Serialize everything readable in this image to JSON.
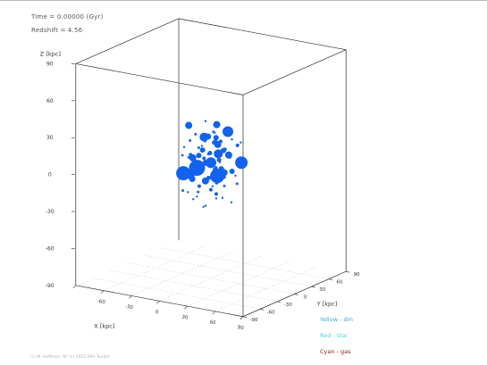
{
  "info": {
    "time_line": "Time = 0.00000 (Gyr)",
    "redshift_line": "Redshift = 4.56"
  },
  "legend": [
    {
      "label": "Yellow - dm",
      "color": "#3fa7d6"
    },
    {
      "label": "Red   - star",
      "color": "#4fd1d9"
    },
    {
      "label": "Cyan  - gas",
      "color": "#8b2323"
    }
  ],
  "credit": "(c) M. Hoffman, N* (c) 2013 SPH Toolkit",
  "colors": {
    "particles": "#1262ee",
    "box": "#2a2a2a",
    "grid": "#cfcfcf"
  },
  "chart_data": {
    "type": "scatter",
    "projection": "3d",
    "grid_floor": true,
    "z_axis": {
      "label": "Z [kpc]",
      "range": [
        -90,
        90
      ],
      "ticks": [
        "90",
        "60",
        "30",
        "0",
        "-30",
        "-60",
        "-90"
      ]
    },
    "x_axis": {
      "label": "X [kpc]",
      "range": [
        -90,
        90
      ],
      "ticks": [
        "-90",
        "-60",
        "-30",
        "0",
        "30",
        "60",
        "90"
      ]
    },
    "y_axis": {
      "label": "Y [kpc]",
      "range": [
        -90,
        90
      ],
      "ticks": [
        "-90",
        "-60",
        "-30",
        "0",
        "30",
        "60",
        "90"
      ]
    },
    "series": [
      {
        "points": [
          {
            "x": 0,
            "y": 0,
            "z": 4,
            "r": 6
          },
          {
            "x": -10,
            "y": -8,
            "z": 0,
            "r": 9
          },
          {
            "x": 13,
            "y": -10,
            "z": -3,
            "r": 8
          },
          {
            "x": -26,
            "y": -6,
            "z": -7,
            "r": 8
          },
          {
            "x": 23,
            "y": 16,
            "z": 4,
            "r": 7
          },
          {
            "x": 6,
            "y": 20,
            "z": 26,
            "r": 6
          },
          {
            "x": -11,
            "y": 6,
            "z": 22,
            "r": 5
          },
          {
            "x": 3,
            "y": 8,
            "z": 10,
            "r": 5
          },
          {
            "x": -16,
            "y": -10,
            "z": -6,
            "r": 5
          },
          {
            "x": 8,
            "y": 10,
            "z": -5,
            "r": 4
          },
          {
            "x": -22,
            "y": 4,
            "z": 4,
            "r": 4
          },
          {
            "x": -5,
            "y": 20,
            "z": 14,
            "r": 4
          },
          {
            "x": -6,
            "y": 20,
            "z": 30,
            "r": 4
          },
          {
            "x": 13,
            "y": 10,
            "z": 10,
            "r": 4
          },
          {
            "x": -30,
            "y": 10,
            "z": 28,
            "r": 4
          },
          {
            "x": 4,
            "y": -16,
            "z": -7,
            "r": 4
          },
          {
            "x": 10,
            "y": 16,
            "z": 28,
            "r": 4
          },
          {
            "x": 8,
            "y": -18,
            "z": 30,
            "r": 3.5
          },
          {
            "x": -20,
            "y": 0,
            "z": -12,
            "r": 3.5
          },
          {
            "x": -8,
            "y": 4,
            "z": 2,
            "r": 3.5
          },
          {
            "x": 3,
            "y": 3,
            "z": -2,
            "r": 3
          },
          {
            "x": 10,
            "y": 2,
            "z": 0,
            "r": 3
          },
          {
            "x": -13,
            "y": 0,
            "z": 8,
            "r": 3
          },
          {
            "x": -6,
            "y": -9,
            "z": 3,
            "r": 3
          },
          {
            "x": 16,
            "y": 11,
            "z": -3,
            "r": 3
          },
          {
            "x": -22,
            "y": 11,
            "z": -4,
            "r": 3
          },
          {
            "x": -3,
            "y": 14,
            "z": 21,
            "r": 3
          },
          {
            "x": 14,
            "y": -1,
            "z": 16,
            "r": 3
          },
          {
            "x": -9,
            "y": 0,
            "z": 13,
            "r": 3
          },
          {
            "x": 10,
            "y": -2,
            "z": 8,
            "r": 2.5
          },
          {
            "x": 4,
            "y": -8,
            "z": 14,
            "r": 2.5
          },
          {
            "x": 1,
            "y": 6,
            "z": 20,
            "r": 2.5
          },
          {
            "x": 15,
            "y": -2,
            "z": -5,
            "r": 2.5
          },
          {
            "x": -5,
            "y": 4,
            "z": -10,
            "r": 2.5
          },
          {
            "x": 6,
            "y": -4,
            "z": 22,
            "r": 2.5
          },
          {
            "x": 0,
            "y": 0,
            "z": -18,
            "r": 2
          },
          {
            "x": 20,
            "y": 14,
            "z": 18,
            "r": 2
          },
          {
            "x": 0,
            "y": -12,
            "z": 10,
            "r": 2
          },
          {
            "x": -11,
            "y": 10,
            "z": 0,
            "r": 2
          },
          {
            "x": 9,
            "y": 10,
            "z": 14,
            "r": 2
          },
          {
            "x": 2,
            "y": 14,
            "z": 8,
            "r": 2
          },
          {
            "x": -12,
            "y": -16,
            "z": 12,
            "r": 2
          },
          {
            "x": 13,
            "y": -4,
            "z": 24,
            "r": 2
          },
          {
            "x": -2,
            "y": 12,
            "z": -3,
            "r": 2
          },
          {
            "x": 5,
            "y": 2,
            "z": -12,
            "r": 2
          },
          {
            "x": -15,
            "y": 4,
            "z": -18,
            "r": 2
          },
          {
            "x": 7,
            "y": -2,
            "z": -20,
            "r": 2
          },
          {
            "x": -20,
            "y": -4,
            "z": 20,
            "r": 1.5
          },
          {
            "x": -18,
            "y": 8,
            "z": 12,
            "r": 1.5
          },
          {
            "x": 4,
            "y": -2,
            "z": 30,
            "r": 1.5
          },
          {
            "x": -10,
            "y": -6,
            "z": -20,
            "r": 1.5
          },
          {
            "x": 12,
            "y": 4,
            "z": -14,
            "r": 1.5
          },
          {
            "x": -6,
            "y": 16,
            "z": -8,
            "r": 1.5
          },
          {
            "x": -30,
            "y": 10,
            "z": 2,
            "r": 1.5
          },
          {
            "x": -24,
            "y": -10,
            "z": -20,
            "r": 1.5
          },
          {
            "x": 22,
            "y": 10,
            "z": -12,
            "r": 1.5
          },
          {
            "x": -14,
            "y": -4,
            "z": 26,
            "r": 1.5
          },
          {
            "x": 14,
            "y": -6,
            "z": 2,
            "r": 1.5
          },
          {
            "x": -4,
            "y": 2,
            "z": 10,
            "r": 1.5
          },
          {
            "x": 18,
            "y": 4,
            "z": 10,
            "r": 1.5
          },
          {
            "x": -16,
            "y": 16,
            "z": 16,
            "r": 1.5
          },
          {
            "x": -14,
            "y": -8,
            "z": -26,
            "r": 1.2
          },
          {
            "x": 2,
            "y": 6,
            "z": -26,
            "r": 1.2
          },
          {
            "x": 10,
            "y": 4,
            "z": -24,
            "r": 1.2
          },
          {
            "x": -20,
            "y": 8,
            "z": -28,
            "r": 1.2
          },
          {
            "x": -2,
            "y": -6,
            "z": -30,
            "r": 1.2
          },
          {
            "x": -8,
            "y": 0,
            "z": -33,
            "r": 1.2
          },
          {
            "x": 16,
            "y": 10,
            "z": -28,
            "r": 1.2
          },
          {
            "x": -26,
            "y": 2,
            "z": -24,
            "r": 1.2
          },
          {
            "x": -34,
            "y": 6,
            "z": 4,
            "r": 1.2
          },
          {
            "x": -30,
            "y": 2,
            "z": 12,
            "r": 1.2
          },
          {
            "x": 26,
            "y": 10,
            "z": 22,
            "r": 1.2
          },
          {
            "x": 20,
            "y": 0,
            "z": 30,
            "r": 1.2
          },
          {
            "x": -12,
            "y": 10,
            "z": 34,
            "r": 1.2
          },
          {
            "x": 4,
            "y": 0,
            "z": 36,
            "r": 1.2
          },
          {
            "x": -20,
            "y": -4,
            "z": 34,
            "r": 1.2
          },
          {
            "x": 24,
            "y": 4,
            "z": -4,
            "r": 1.2
          },
          {
            "x": -6,
            "y": -6,
            "z": 18,
            "r": 1.2
          },
          {
            "x": 6,
            "y": 6,
            "z": 4,
            "r": 1.2
          },
          {
            "x": -2,
            "y": 10,
            "z": 26,
            "r": 1.2
          },
          {
            "x": 14,
            "y": 14,
            "z": 22,
            "r": 1.2
          },
          {
            "x": 8,
            "y": -10,
            "z": -12,
            "r": 1.2
          },
          {
            "x": -26,
            "y": -8,
            "z": 8,
            "r": 1.2
          }
        ]
      }
    ]
  }
}
